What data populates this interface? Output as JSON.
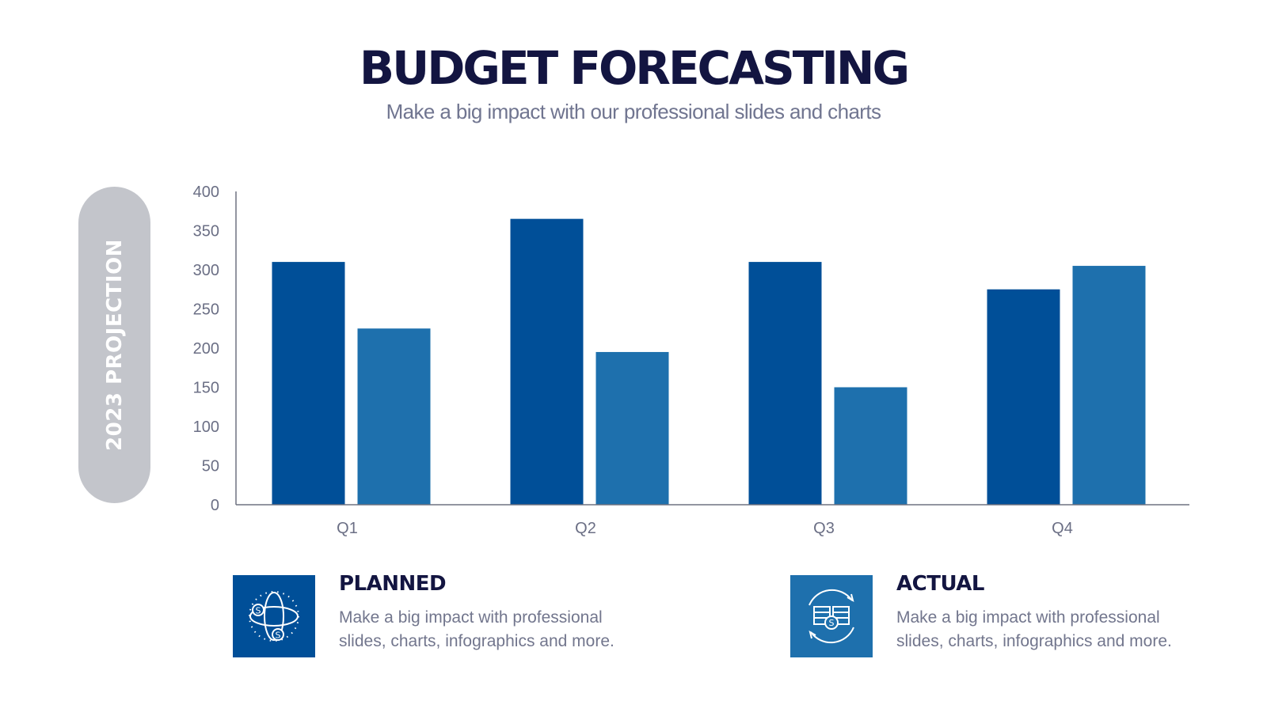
{
  "header": {
    "title": "BUDGET FORECASTING",
    "subtitle": "Make a big impact with our professional slides and charts"
  },
  "side_label": "2023 PROJECTION",
  "legend": [
    {
      "title": "PLANNED",
      "description_line1": "Make a big impact with professional",
      "description_line2": "slides, charts, infographics and more.",
      "icon": "globe-money-orbit-icon",
      "color": "#004f98"
    },
    {
      "title": "ACTUAL",
      "description_line1": "Make a big impact with professional",
      "description_line2": "slides, charts, infographics and more.",
      "icon": "cash-cycle-icon",
      "color": "#1e70ad"
    }
  ],
  "chart_data": {
    "type": "bar",
    "title": "BUDGET FORECASTING",
    "xlabel": "",
    "ylabel": "2023 PROJECTION",
    "categories": [
      "Q1",
      "Q2",
      "Q3",
      "Q4"
    ],
    "series": [
      {
        "name": "PLANNED",
        "values": [
          310,
          365,
          310,
          275
        ],
        "color": "#004f98"
      },
      {
        "name": "ACTUAL",
        "values": [
          225,
          195,
          150,
          305
        ],
        "color": "#1e70ad"
      }
    ],
    "ylim": [
      0,
      400
    ],
    "yticks": [
      "0",
      "50",
      "100",
      "150",
      "200",
      "250",
      "300",
      "350",
      "400"
    ],
    "grid": false,
    "legend_position": "bottom"
  }
}
